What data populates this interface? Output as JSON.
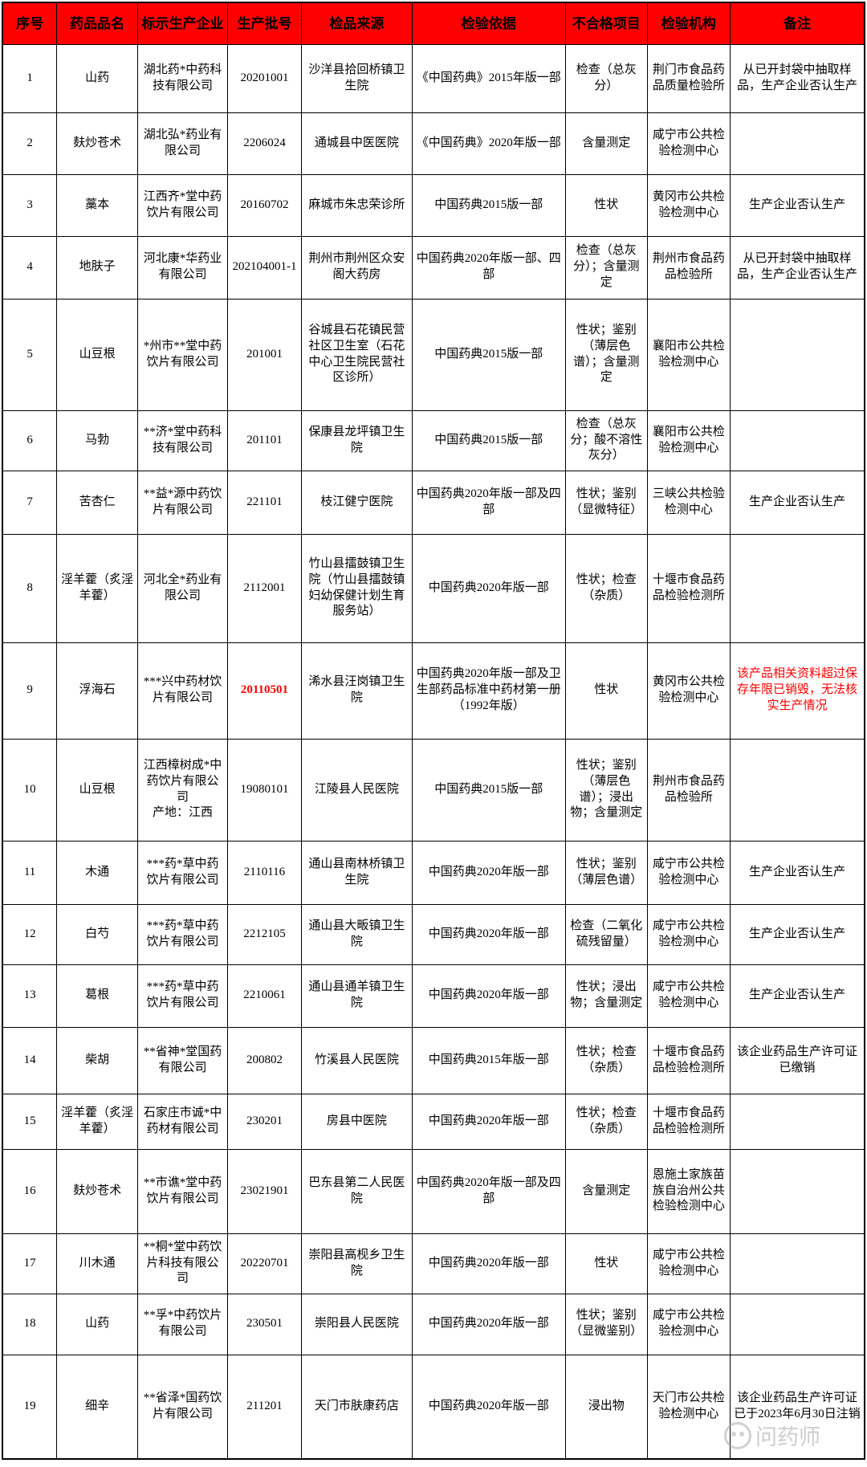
{
  "page": {
    "background": "#ffffff"
  },
  "table": {
    "border_color": "#000000",
    "alert_color": "#fe0000",
    "header": {
      "bg": "#fe0000",
      "text_color": "#000000",
      "columns": [
        "序号",
        "药品品名",
        "标示生产企业",
        "生产批号",
        "检品来源",
        "检验依据",
        "不合格项目",
        "检验机构",
        "备注"
      ]
    },
    "rows": [
      {
        "no": "1",
        "name": "山药",
        "company": "湖北药*中药科技有限公司",
        "batch": "20201001",
        "source": "沙洋县拾回桥镇卫生院",
        "basis": "《中国药典》2015年版一部",
        "items": "检查（总灰分）",
        "agency": "荆门市食品药品质量检验所",
        "remark": "从已开封袋中抽取样品，生产企业否认生产"
      },
      {
        "no": "2",
        "name": "麸炒苍术",
        "company": "湖北弘*药业有限公司",
        "batch": "2206024",
        "source": "通城县中医医院",
        "basis": "《中国药典》2020年版一部",
        "items": "含量测定",
        "agency": "咸宁市公共检验检测中心",
        "remark": ""
      },
      {
        "no": "3",
        "name": "藁本",
        "company": "江西齐*堂中药饮片有限公司",
        "batch": "20160702",
        "source": "麻城市朱忠荣诊所",
        "basis": "中国药典2015版一部",
        "items": "性状",
        "agency": "黄冈市公共检验检测中心",
        "remark": "生产企业否认生产"
      },
      {
        "no": "4",
        "name": "地肤子",
        "company": "河北康*华药业有限公司",
        "batch": "202104001-1",
        "source": "荆州市荆州区众安阁大药房",
        "basis": "中国药典2020年版一部、四部",
        "items": "检查（总灰分）；含量测定",
        "agency": "荆州市食品药品检验所",
        "remark": "从已开封袋中抽取样品，生产企业否认生产"
      },
      {
        "no": "5",
        "name": "山豆根",
        "company": "*州市**堂中药饮片有限公司",
        "batch": "201001",
        "source": "谷城县石花镇民营社区卫生室（石花中心卫生院民营社区诊所）",
        "basis": "中国药典2015版一部",
        "items": "性状；鉴别（薄层色谱）；含量测定",
        "agency": "襄阳市公共检验检测中心",
        "remark": ""
      },
      {
        "no": "6",
        "name": "马勃",
        "company": "**济*堂中药科技有限公司",
        "batch": "201101",
        "source": "保康县龙坪镇卫生院",
        "basis": "中国药典2015版一部",
        "items": "检查（总灰分；酸不溶性灰分）",
        "agency": "襄阳市公共检验检测中心",
        "remark": ""
      },
      {
        "no": "7",
        "name": "苦杏仁",
        "company": "**益*源中药饮片有限公司",
        "batch": "221101",
        "source": "枝江健宁医院",
        "basis": "中国药典2020年版一部及四部",
        "items": "性状；鉴别（显微特征）",
        "agency": "三峡公共检验检测中心",
        "remark": "生产企业否认生产"
      },
      {
        "no": "8",
        "name": "淫羊藿（炙淫羊藿）",
        "company": "河北全*药业有限公司",
        "batch": "2112001",
        "source": "竹山县擂鼓镇卫生院（竹山县擂鼓镇妇幼保健计划生育服务站）",
        "basis": "中国药典2020年版一部",
        "items": "性状；检查（杂质）",
        "agency": "十堰市食品药品检验检测所",
        "remark": ""
      },
      {
        "no": "9",
        "name": "浮海石",
        "company": "***兴中药材饮片有限公司",
        "batch": "20110501",
        "batch_red": true,
        "source": "浠水县汪岗镇卫生院",
        "basis": "中国药典2020年版一部及卫生部药品标准中药材第一册（1992年版）",
        "items": "性状",
        "agency": "黄冈市公共检验检测中心",
        "remark": "该产品相关资料超过保存年限已销毁，无法核实生产情况",
        "remark_red": true
      },
      {
        "no": "10",
        "name": "山豆根",
        "company": "江西樟树成*中药饮片有限公司\n产地：江西",
        "batch": "19080101",
        "source": "江陵县人民医院",
        "basis": "中国药典2015版一部",
        "items": "性状；鉴别（薄层色谱）；浸出物；含量测定",
        "agency": "荆州市食品药品检验所",
        "remark": ""
      },
      {
        "no": "11",
        "name": "木通",
        "company": "***药*草中药饮片有限公司",
        "batch": "2110116",
        "source": "通山县南林桥镇卫生院",
        "basis": "中国药典2020年版一部",
        "items": "性状；鉴别（薄层色谱）",
        "agency": "咸宁市公共检验检测中心",
        "remark": "生产企业否认生产"
      },
      {
        "no": "12",
        "name": "白芍",
        "company": "***药*草中药饮片有限公司",
        "batch": "2212105",
        "source": "通山县大畈镇卫生院",
        "basis": "中国药典2020年版一部",
        "items": "检查（二氧化硫残留量）",
        "agency": "咸宁市公共检验检测中心",
        "remark": "生产企业否认生产"
      },
      {
        "no": "13",
        "name": "葛根",
        "company": "***药*草中药饮片有限公司",
        "batch": "2210061",
        "source": "通山县通羊镇卫生院",
        "basis": "中国药典2020年版一部",
        "items": "性状；浸出物；含量测定",
        "agency": "咸宁市公共检验检测中心",
        "remark": "生产企业否认生产"
      },
      {
        "no": "14",
        "name": "柴胡",
        "company": "**省神*堂国药有限公司",
        "batch": "200802",
        "source": "竹溪县人民医院",
        "basis": "中国药典2015年版一部",
        "items": "性状；检查（杂质）",
        "agency": "十堰市食品药品检验检测所",
        "remark": "该企业药品生产许可证已缴销"
      },
      {
        "no": "15",
        "name": "淫羊藿（炙淫羊藿）",
        "company": "石家庄市诚*中药材有限公司",
        "batch": "230201",
        "source": "房县中医院",
        "basis": "中国药典2020年版一部",
        "items": "性状；检查（杂质）",
        "agency": "十堰市食品药品检验检测所",
        "remark": ""
      },
      {
        "no": "16",
        "name": "麸炒苍术",
        "company": "**市谯*堂中药饮片有限公司",
        "batch": "23021901",
        "source": "巴东县第二人民医院",
        "basis": "中国药典2020年版一部及四部",
        "items": "含量测定",
        "agency": "恩施土家族苗族自治州公共检验检测中心",
        "remark": ""
      },
      {
        "no": "17",
        "name": "川木通",
        "company": "**桐*堂中药饮片科技有限公司",
        "batch": "20220701",
        "source": "崇阳县高枧乡卫生院",
        "basis": "中国药典2020年版一部",
        "items": "性状",
        "agency": "咸宁市公共检验检测中心",
        "remark": ""
      },
      {
        "no": "18",
        "name": "山药",
        "company": "**孚*中药饮片有限公司",
        "batch": "230501",
        "source": "崇阳县人民医院",
        "basis": "中国药典2020年版一部",
        "items": "性状；鉴别（显微鉴别）",
        "agency": "咸宁市公共检验检测中心",
        "remark": ""
      },
      {
        "no": "19",
        "name": "细辛",
        "company": "**省泽*国药饮片有限公司",
        "batch": "211201",
        "source": "天门市肤康药店",
        "basis": "中国药典2020年版一部",
        "items": "浸出物",
        "agency": "天门市公共检验检测中心",
        "remark": "该企业药品生产许可证已于2023年6月30日注销"
      }
    ]
  },
  "watermark": {
    "text": "问药师",
    "icon": "pharmacist-logo-icon"
  }
}
